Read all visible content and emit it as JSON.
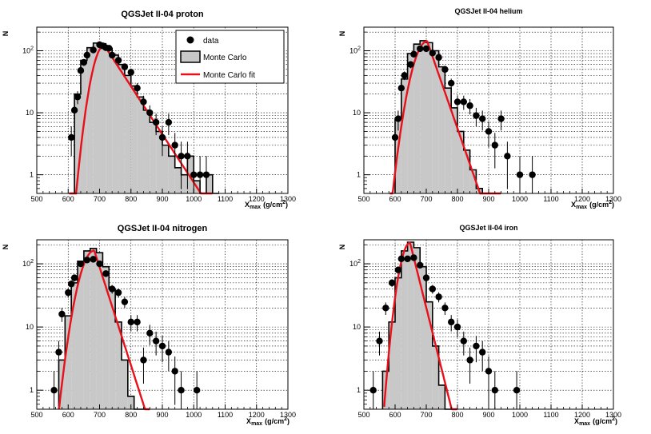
{
  "legend": {
    "data_label": "data",
    "mc_label": "Monte Carlo",
    "fit_label": "Monte Carlo fit"
  },
  "colors": {
    "fit": "#e8101a",
    "mc_fill": "#c8c8c8",
    "mc_line": "#000000",
    "data": "#000000",
    "grid": "#000000"
  },
  "chart_data": [
    {
      "type": "bar",
      "title": "QGSJet II-04 proton",
      "xlabel": "X_max (g/cm^2)",
      "xlabel_main": "X",
      "xlabel_sub": "max",
      "xlabel_unit": "(g/cm",
      "xlabel_sup": "2",
      "xlabel_close": ")",
      "ylabel": "N",
      "xlim": [
        500,
        1300
      ],
      "ylim": [
        0.5,
        240
      ],
      "xticks": [
        "500",
        "600",
        "700",
        "800",
        "900",
        "1000",
        "1100",
        "1200",
        "1300"
      ],
      "yticks": [
        "1",
        "10",
        "10^2"
      ],
      "show_legend": true,
      "mc_hist": {
        "bin_width": 20,
        "edges_start": 620,
        "values": [
          20,
          70,
          112,
          133,
          130,
          110,
          85,
          60,
          40,
          27,
          18,
          11,
          7,
          5,
          3,
          2,
          1.3,
          1,
          2,
          0.8,
          0.5,
          1,
          0.5
        ]
      },
      "fit": {
        "peak": 715,
        "amp": 122,
        "sigL": 27,
        "lam": 56,
        "start": 603,
        "end": 1060
      },
      "data_points": [
        {
          "x": 610,
          "y": 4
        },
        {
          "x": 620,
          "y": 11
        },
        {
          "x": 630,
          "y": 18
        },
        {
          "x": 640,
          "y": 48
        },
        {
          "x": 650,
          "y": 65
        },
        {
          "x": 660,
          "y": 85
        },
        {
          "x": 680,
          "y": 103
        },
        {
          "x": 700,
          "y": 125
        },
        {
          "x": 710,
          "y": 120
        },
        {
          "x": 720,
          "y": 112
        },
        {
          "x": 730,
          "y": 110
        },
        {
          "x": 740,
          "y": 85
        },
        {
          "x": 760,
          "y": 70
        },
        {
          "x": 780,
          "y": 55
        },
        {
          "x": 800,
          "y": 45
        },
        {
          "x": 820,
          "y": 25
        },
        {
          "x": 840,
          "y": 15
        },
        {
          "x": 860,
          "y": 10
        },
        {
          "x": 880,
          "y": 7
        },
        {
          "x": 900,
          "y": 4
        },
        {
          "x": 920,
          "y": 7
        },
        {
          "x": 940,
          "y": 3
        },
        {
          "x": 960,
          "y": 2
        },
        {
          "x": 980,
          "y": 2
        },
        {
          "x": 1000,
          "y": 1
        },
        {
          "x": 1020,
          "y": 1
        },
        {
          "x": 1040,
          "y": 1
        }
      ]
    },
    {
      "type": "bar",
      "title": "QGSJet II-04 helium",
      "xlabel": "X_max (g/cm^2)",
      "xlabel_main": "X",
      "xlabel_sub": "max",
      "xlabel_unit": "(g/cm",
      "xlabel_sup": "2",
      "xlabel_close": ")",
      "ylabel": "N",
      "xlim": [
        500,
        1300
      ],
      "ylim": [
        0.5,
        240
      ],
      "xticks": [
        "500",
        "600",
        "700",
        "800",
        "900",
        "1000",
        "1100",
        "1200",
        "1300"
      ],
      "yticks": [
        "1",
        "10",
        "10^2"
      ],
      "show_legend": false,
      "mc_hist": {
        "bin_width": 20,
        "edges_start": 600,
        "values": [
          8,
          35,
          90,
          128,
          145,
          135,
          100,
          55,
          25,
          12,
          5,
          2.5,
          1.2,
          0.6,
          0.5,
          0.5
        ]
      },
      "fit": {
        "peak": 703,
        "amp": 142,
        "sigL": 33,
        "lam": 30,
        "start": 583,
        "end": 940
      },
      "data_points": [
        {
          "x": 600,
          "y": 4
        },
        {
          "x": 610,
          "y": 8
        },
        {
          "x": 620,
          "y": 25
        },
        {
          "x": 630,
          "y": 40
        },
        {
          "x": 650,
          "y": 60
        },
        {
          "x": 660,
          "y": 88
        },
        {
          "x": 680,
          "y": 108
        },
        {
          "x": 700,
          "y": 108
        },
        {
          "x": 720,
          "y": 92
        },
        {
          "x": 740,
          "y": 78
        },
        {
          "x": 760,
          "y": 50
        },
        {
          "x": 780,
          "y": 30
        },
        {
          "x": 800,
          "y": 15
        },
        {
          "x": 820,
          "y": 15
        },
        {
          "x": 840,
          "y": 13
        },
        {
          "x": 860,
          "y": 9
        },
        {
          "x": 880,
          "y": 8
        },
        {
          "x": 900,
          "y": 5
        },
        {
          "x": 920,
          "y": 3
        },
        {
          "x": 940,
          "y": 8
        },
        {
          "x": 960,
          "y": 2
        },
        {
          "x": 1000,
          "y": 1
        },
        {
          "x": 1040,
          "y": 1
        }
      ]
    },
    {
      "type": "bar",
      "title": "QGSJet II-04 nitrogen",
      "xlabel": "X_max (g/cm^2)",
      "xlabel_main": "X",
      "xlabel_sub": "max",
      "xlabel_unit": "(g/cm",
      "xlabel_sup": "2",
      "xlabel_close": ")",
      "ylabel": "N",
      "xlim": [
        500,
        1300
      ],
      "ylim": [
        0.5,
        240
      ],
      "xticks": [
        "500",
        "600",
        "700",
        "800",
        "900",
        "1000",
        "1100",
        "1200",
        "1300"
      ],
      "yticks": [
        "1",
        "10",
        "10^2"
      ],
      "show_legend": false,
      "mc_hist": {
        "bin_width": 20,
        "edges_start": 570,
        "values": [
          3,
          15,
          50,
          110,
          160,
          175,
          150,
          90,
          40,
          12,
          3,
          0.8,
          0.5,
          0.5
        ]
      },
      "fit": {
        "peak": 683,
        "amp": 162,
        "sigL": 33,
        "lam": 28,
        "start": 570,
        "end": 860
      },
      "data_points": [
        {
          "x": 555,
          "y": 1
        },
        {
          "x": 570,
          "y": 4
        },
        {
          "x": 580,
          "y": 16
        },
        {
          "x": 600,
          "y": 35
        },
        {
          "x": 610,
          "y": 48
        },
        {
          "x": 620,
          "y": 60
        },
        {
          "x": 640,
          "y": 100
        },
        {
          "x": 660,
          "y": 115
        },
        {
          "x": 680,
          "y": 118
        },
        {
          "x": 700,
          "y": 100
        },
        {
          "x": 720,
          "y": 70
        },
        {
          "x": 740,
          "y": 40
        },
        {
          "x": 760,
          "y": 35
        },
        {
          "x": 780,
          "y": 25
        },
        {
          "x": 800,
          "y": 12
        },
        {
          "x": 820,
          "y": 12
        },
        {
          "x": 840,
          "y": 3
        },
        {
          "x": 860,
          "y": 8
        },
        {
          "x": 880,
          "y": 6
        },
        {
          "x": 900,
          "y": 5
        },
        {
          "x": 920,
          "y": 4
        },
        {
          "x": 940,
          "y": 2
        },
        {
          "x": 960,
          "y": 1
        },
        {
          "x": 1010,
          "y": 1
        }
      ]
    },
    {
      "type": "bar",
      "title": "QGSJet II-04 iron",
      "xlabel": "X_max (g/cm^2)",
      "xlabel_main": "X",
      "xlabel_sub": "max",
      "xlabel_unit": "(g/cm",
      "xlabel_sup": "2",
      "xlabel_close": ")",
      "ylabel": "N",
      "xlim": [
        500,
        1300
      ],
      "ylim": [
        0.5,
        240
      ],
      "xticks": [
        "500",
        "600",
        "700",
        "800",
        "900",
        "1000",
        "1100",
        "1200",
        "1300"
      ],
      "yticks": [
        "1",
        "10",
        "10^2"
      ],
      "show_legend": false,
      "mc_hist": {
        "bin_width": 20,
        "edges_start": 560,
        "values": [
          2,
          12,
          60,
          160,
          220,
          180,
          90,
          25,
          5,
          1.2,
          0.5,
          0.5
        ]
      },
      "fit": {
        "peak": 648,
        "amp": 215,
        "sigL": 24,
        "lam": 22,
        "start": 565,
        "end": 800
      },
      "data_points": [
        {
          "x": 530,
          "y": 1
        },
        {
          "x": 550,
          "y": 6
        },
        {
          "x": 570,
          "y": 20
        },
        {
          "x": 590,
          "y": 50
        },
        {
          "x": 610,
          "y": 80
        },
        {
          "x": 620,
          "y": 120
        },
        {
          "x": 640,
          "y": 120
        },
        {
          "x": 660,
          "y": 125
        },
        {
          "x": 680,
          "y": 95
        },
        {
          "x": 700,
          "y": 60
        },
        {
          "x": 720,
          "y": 40
        },
        {
          "x": 740,
          "y": 30
        },
        {
          "x": 760,
          "y": 20
        },
        {
          "x": 780,
          "y": 12
        },
        {
          "x": 800,
          "y": 10
        },
        {
          "x": 820,
          "y": 6
        },
        {
          "x": 840,
          "y": 3
        },
        {
          "x": 860,
          "y": 5
        },
        {
          "x": 880,
          "y": 4
        },
        {
          "x": 900,
          "y": 2
        },
        {
          "x": 920,
          "y": 1
        },
        {
          "x": 990,
          "y": 1
        }
      ]
    }
  ]
}
